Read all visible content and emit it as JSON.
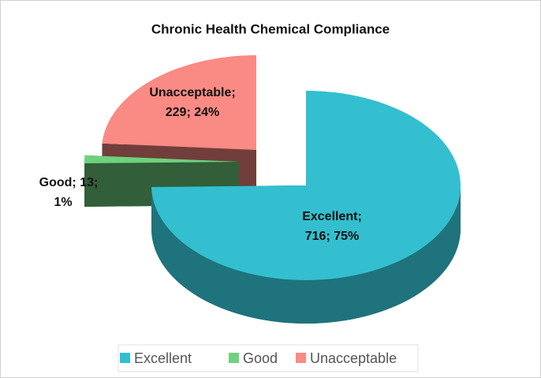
{
  "chart_data": {
    "type": "pie",
    "title": "Chronic Health Chemical Compliance",
    "categories": [
      "Excellent",
      "Good",
      "Unacceptable"
    ],
    "values": [
      716,
      13,
      229
    ],
    "value_labels": [
      [
        "Excellent;",
        "716; 75%"
      ],
      [
        "Good; 13;",
        "1%"
      ],
      [
        "Unacceptable;",
        "229; 24%"
      ]
    ],
    "colors": [
      "#33bfcf",
      "#6fd17e",
      "#fa8a84"
    ],
    "legend": "bottom"
  }
}
